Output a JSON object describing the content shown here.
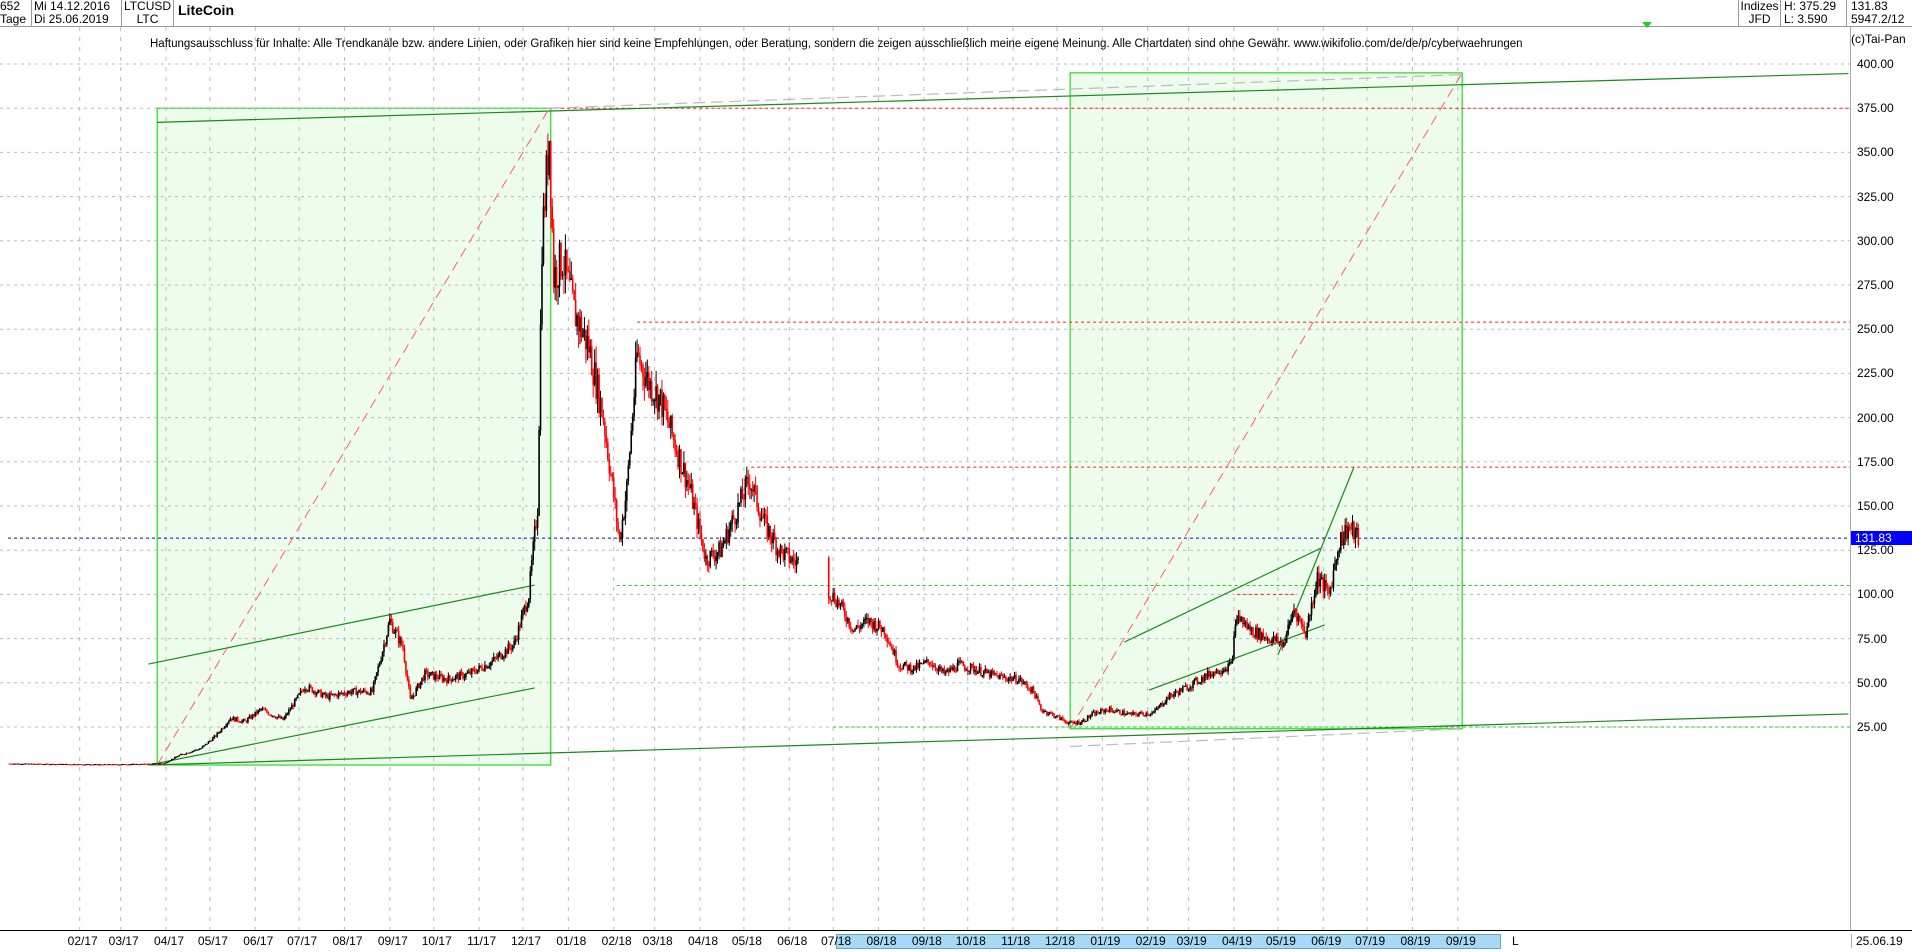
{
  "header": {
    "count": "652",
    "period": "Tage",
    "date_from": "Mi 14.12.2016",
    "date_to": "Di 25.06.2019",
    "symbol": "LTCUSD",
    "short": "LTC",
    "title": "LiteCoin",
    "group": "Indizes",
    "source": "JFD",
    "high": "H: 375.29",
    "low": "L: 3.590",
    "last": "131.83",
    "info": "5947.2/12"
  },
  "disclaimer": "Haftungsausschluss für Inhalte: Alle Trendkanäle bzw. andere Linien, oder Grafiken hier sind keine Empfehlungen, oder Beratung, sondern die zeigen ausschließlich meine eigene Meinung. Alle Chartdaten sind ohne Gewähr.  www.wikifolio.com/de/de/p/cyberwaehrungen",
  "copyright": "(c)Tai-Pan",
  "footer": {
    "l_marker": "L",
    "end_date": "25.06.19"
  },
  "colors": {
    "up": "#000000",
    "down": "#ff0000",
    "box_fill": "#eefcee",
    "box_stroke": "#22dd22",
    "trend": "#1a8a1a",
    "current": "#0000ff"
  },
  "chart_data": {
    "type": "candlestick",
    "title": "LiteCoin",
    "ylim": [
      0,
      400
    ],
    "y_ticks": [
      "400.00",
      "375.00",
      "350.00",
      "325.00",
      "300.00",
      "275.00",
      "250.00",
      "225.00",
      "200.00",
      "175.00",
      "150.00",
      "125.00",
      "100.00",
      "75.00",
      "50.00",
      "25.00"
    ],
    "x_ticks": [
      "02/17",
      "03/17",
      "04/17",
      "05/17",
      "06/17",
      "07/17",
      "08/17",
      "09/17",
      "10/17",
      "11/17",
      "12/17",
      "01/18",
      "02/18",
      "03/18",
      "04/18",
      "05/18",
      "06/18",
      "07/18",
      "08/18",
      "09/18",
      "10/18",
      "11/18",
      "12/18",
      "01/19",
      "02/19",
      "03/19",
      "04/19",
      "05/19",
      "06/19",
      "07/19",
      "08/19",
      "09/19"
    ],
    "grid": true,
    "current_value": "131.83",
    "close": [
      [
        "2016-12-14",
        4.3
      ],
      [
        "2017-01-15",
        4.0
      ],
      [
        "2017-02-15",
        3.8
      ],
      [
        "2017-03-15",
        4.0
      ],
      [
        "2017-03-31",
        4.5
      ],
      [
        "2017-04-10",
        9
      ],
      [
        "2017-04-25",
        13
      ],
      [
        "2017-05-05",
        20
      ],
      [
        "2017-05-15",
        30
      ],
      [
        "2017-05-25",
        28
      ],
      [
        "2017-06-05",
        35
      ],
      [
        "2017-06-20",
        29
      ],
      [
        "2017-07-05",
        48
      ],
      [
        "2017-07-20",
        42
      ],
      [
        "2017-08-05",
        45
      ],
      [
        "2017-08-20",
        45
      ],
      [
        "2017-09-01",
        85
      ],
      [
        "2017-09-10",
        70
      ],
      [
        "2017-09-15",
        40
      ],
      [
        "2017-09-25",
        55
      ],
      [
        "2017-10-10",
        52
      ],
      [
        "2017-10-25",
        55
      ],
      [
        "2017-11-10",
        62
      ],
      [
        "2017-11-25",
        72
      ],
      [
        "2017-12-05",
        100
      ],
      [
        "2017-12-11",
        150
      ],
      [
        "2017-12-14",
        300
      ],
      [
        "2017-12-19",
        360
      ],
      [
        "2017-12-22",
        280
      ],
      [
        "2017-12-28",
        290
      ],
      [
        "2018-01-05",
        260
      ],
      [
        "2018-01-15",
        240
      ],
      [
        "2018-01-25",
        200
      ],
      [
        "2018-02-05",
        130
      ],
      [
        "2018-02-10",
        160
      ],
      [
        "2018-02-17",
        235
      ],
      [
        "2018-02-25",
        220
      ],
      [
        "2018-03-05",
        210
      ],
      [
        "2018-03-15",
        185
      ],
      [
        "2018-03-25",
        160
      ],
      [
        "2018-04-05",
        120
      ],
      [
        "2018-04-15",
        125
      ],
      [
        "2018-04-25",
        145
      ],
      [
        "2018-05-05",
        165
      ],
      [
        "2018-05-15",
        140
      ],
      [
        "2018-05-25",
        125
      ],
      [
        "2018-06-05",
        118
      ],
      [
        "2018-06-12",
        120
      ],
      [
        "2018-06-25",
        105
      ],
      [
        "2018-07-05",
        95
      ],
      [
        "2018-07-15",
        80
      ],
      [
        "2018-07-25",
        85
      ],
      [
        "2018-08-05",
        80
      ],
      [
        "2018-08-15",
        60
      ],
      [
        "2018-08-25",
        58
      ],
      [
        "2018-09-05",
        62
      ],
      [
        "2018-09-15",
        55
      ],
      [
        "2018-09-25",
        60
      ],
      [
        "2018-10-05",
        58
      ],
      [
        "2018-10-15",
        55
      ],
      [
        "2018-10-25",
        53
      ],
      [
        "2018-11-05",
        52
      ],
      [
        "2018-11-15",
        45
      ],
      [
        "2018-11-20",
        35
      ],
      [
        "2018-11-28",
        32
      ],
      [
        "2018-12-10",
        27
      ],
      [
        "2018-12-18",
        28
      ],
      [
        "2018-12-25",
        32
      ],
      [
        "2019-01-05",
        35
      ],
      [
        "2019-01-20",
        32
      ],
      [
        "2019-02-05",
        33
      ],
      [
        "2019-02-15",
        42
      ],
      [
        "2019-03-01",
        48
      ],
      [
        "2019-03-15",
        55
      ],
      [
        "2019-03-30",
        60
      ],
      [
        "2019-04-03",
        88
      ],
      [
        "2019-04-12",
        80
      ],
      [
        "2019-04-25",
        75
      ],
      [
        "2019-05-05",
        72
      ],
      [
        "2019-05-12",
        92
      ],
      [
        "2019-05-20",
        78
      ],
      [
        "2019-05-28",
        110
      ],
      [
        "2019-06-05",
        100
      ],
      [
        "2019-06-12",
        130
      ],
      [
        "2019-06-18",
        138
      ],
      [
        "2019-06-25",
        131.83
      ]
    ],
    "boxes": [
      {
        "from": "2017-03-26",
        "to": "2017-12-20",
        "low": 3.5,
        "high": 375
      },
      {
        "from": "2018-12-10",
        "to": "2019-09-04",
        "low": 24,
        "high": 395
      }
    ],
    "trendlines": [
      {
        "p1": [
          "2017-03-26",
          367
        ],
        "p2": [
          "2020-05-25",
          394.6
        ],
        "style": "solid"
      },
      {
        "p1": [
          "2017-03-21",
          3.5
        ],
        "p2": [
          "2020-05-25",
          32.4
        ],
        "style": "solid"
      },
      {
        "p1": [
          "2017-03-20",
          60.6
        ],
        "p2": [
          "2017-12-09",
          105.3
        ],
        "style": "solid"
      },
      {
        "p1": [
          "2017-03-20",
          3.5
        ],
        "p2": [
          "2017-12-09",
          47.1
        ],
        "style": "solid"
      },
      {
        "p1": [
          "2019-01-16",
          73
        ],
        "p2": [
          "2019-05-30",
          126
        ],
        "style": "solid"
      },
      {
        "p1": [
          "2019-02-02",
          45.9
        ],
        "p2": [
          "2019-06-02",
          82.7
        ],
        "style": "solid"
      },
      {
        "p1": [
          "2019-05-01",
          65.7
        ],
        "p2": [
          "2019-06-22",
          172
        ],
        "style": "solid"
      },
      {
        "p1": [
          "2017-03-26",
          3.5
        ],
        "p2": [
          "2017-12-19",
          375
        ],
        "style": "red-dashed"
      },
      {
        "p1": [
          "2018-12-10",
          24
        ],
        "p2": [
          "2019-09-04",
          395
        ],
        "style": "red-dashed"
      },
      {
        "p1": [
          "2017-12-19",
          375
        ],
        "p2": [
          "2019-09-04",
          394
        ],
        "style": "gray-dashed"
      },
      {
        "p1": [
          "2018-12-10",
          14
        ],
        "p2": [
          "2019-09-04",
          24
        ],
        "style": "gray-dashed"
      }
    ],
    "levels": [
      {
        "value": 375,
        "from": "2017-12-19",
        "color": "red"
      },
      {
        "value": 254,
        "from": "2018-02-17",
        "color": "red"
      },
      {
        "value": 172,
        "from": "2018-05-06",
        "color": "red"
      },
      {
        "value": 100,
        "from": "2019-04-03",
        "to": "2019-05-12",
        "color": "red"
      },
      {
        "value": 105,
        "from": "2018-02-03",
        "color": "green"
      },
      {
        "value": 25,
        "from": "2018-07-01",
        "color": "green"
      },
      {
        "value": 131.83,
        "from": "2016-12-14",
        "color": "blue"
      }
    ]
  }
}
